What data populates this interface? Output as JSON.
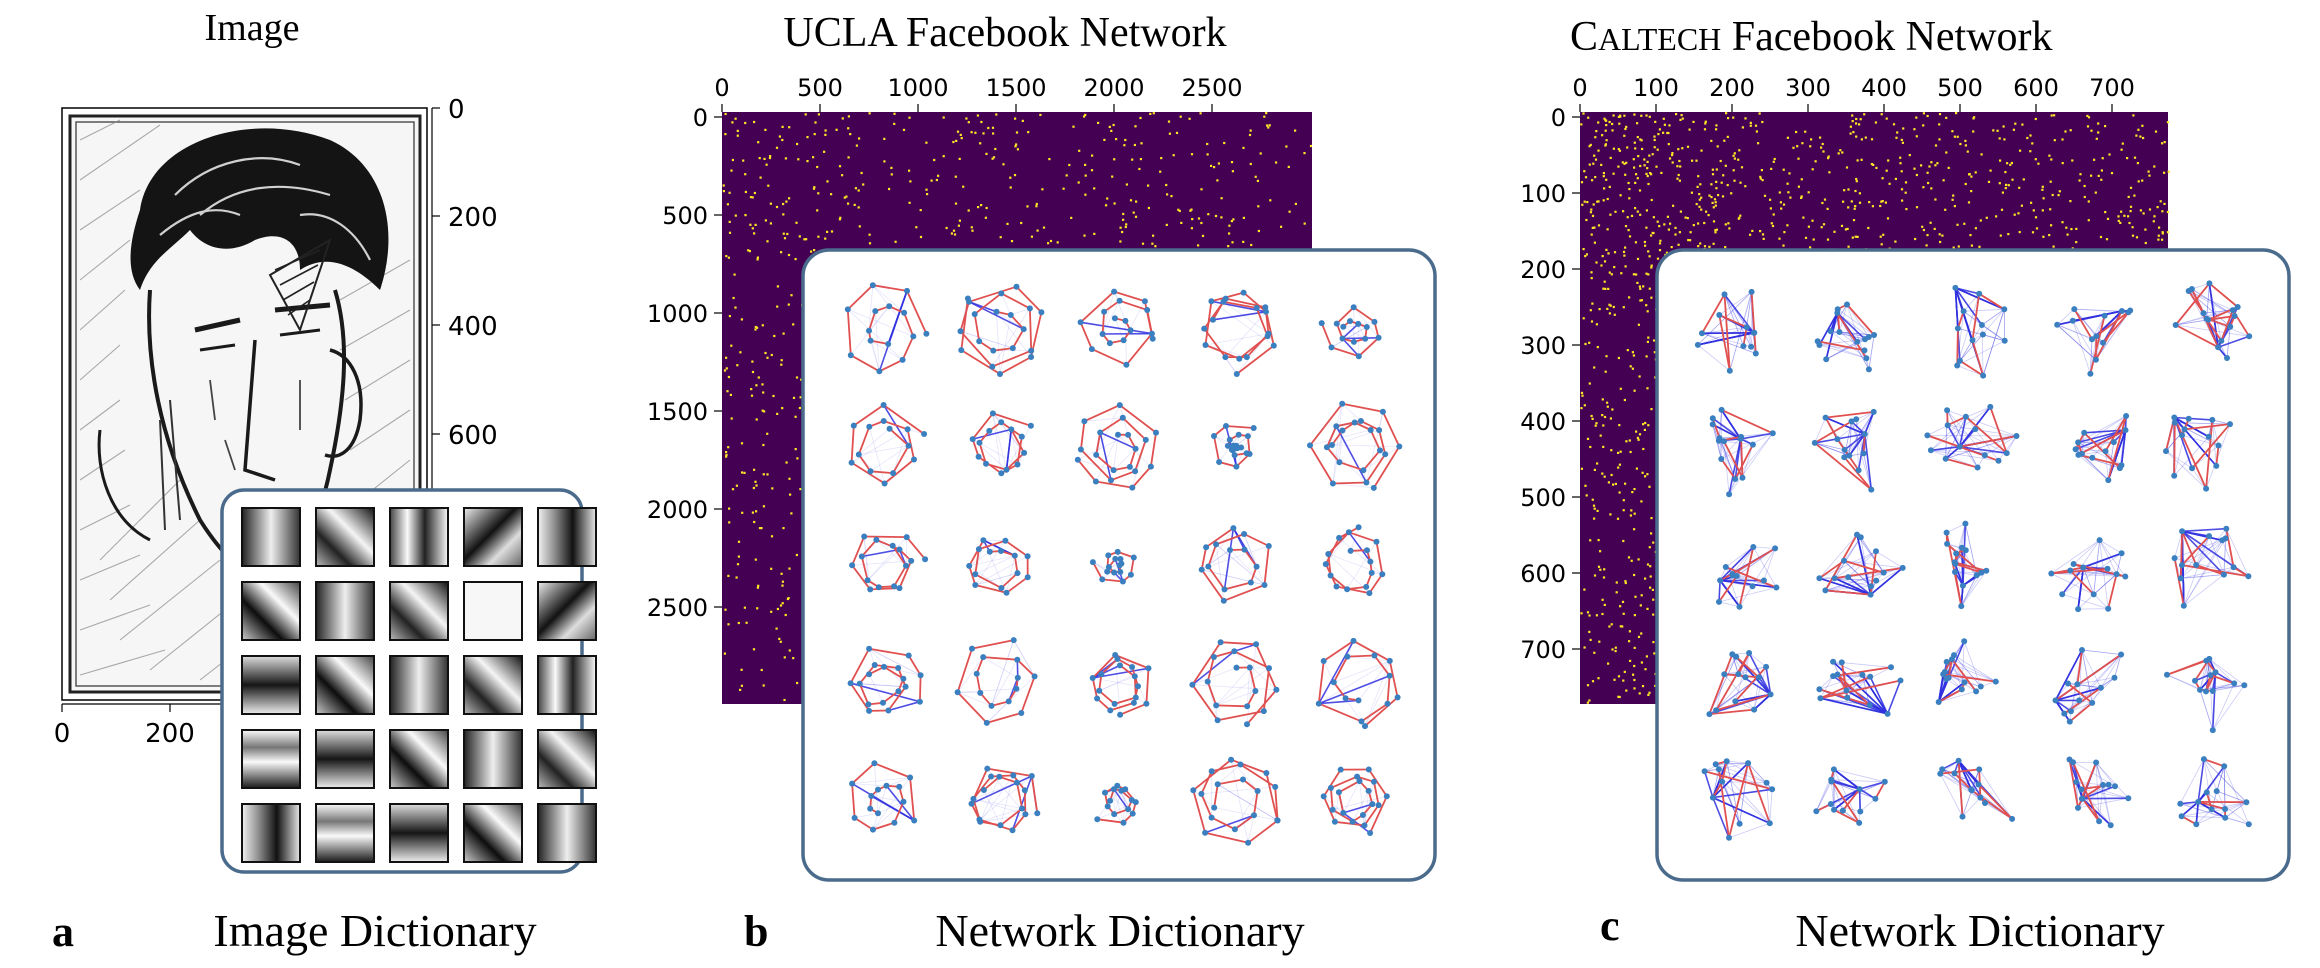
{
  "panels": [
    {
      "id": "a",
      "letter": "a",
      "title": "Image",
      "caption": "Image Dictionary",
      "axis_right_ticks": [
        "0",
        "200",
        "400",
        "600"
      ],
      "axis_bottom_ticks": [
        "0",
        "200"
      ],
      "dictionary_grid": {
        "rows": 5,
        "cols": 5,
        "kind": "image-patches"
      }
    },
    {
      "id": "b",
      "letter": "b",
      "title": "UCLA Facebook Network",
      "caption": "Network Dictionary",
      "axis_top_ticks": [
        "0",
        "500",
        "1000",
        "1500",
        "2000",
        "2500"
      ],
      "axis_left_ticks": [
        "0",
        "500",
        "1000",
        "1500",
        "2000",
        "2500"
      ],
      "matrix_colors": {
        "background": "#440154",
        "dot": "#fde725"
      },
      "dictionary_grid": {
        "rows": 5,
        "cols": 5,
        "kind": "network-motifs"
      }
    },
    {
      "id": "c",
      "letter": "c",
      "title_prefix": "C",
      "title_smallcaps": "ALTECH",
      "title_rest": " Facebook Network",
      "caption": "Network Dictionary",
      "axis_top_ticks": [
        "0",
        "100",
        "200",
        "300",
        "400",
        "500",
        "600",
        "700"
      ],
      "axis_left_ticks": [
        "0",
        "100",
        "200",
        "300",
        "400",
        "500",
        "600",
        "700"
      ],
      "matrix_colors": {
        "background": "#440154",
        "dot": "#fde725"
      },
      "dictionary_grid": {
        "rows": 5,
        "cols": 5,
        "kind": "network-motifs-dense"
      }
    }
  ],
  "colors": {
    "frame_border": "#4a6b8c",
    "edge_red": "#e05050",
    "edge_blue": "#3030e0",
    "node_blue": "#3a7fc0"
  }
}
